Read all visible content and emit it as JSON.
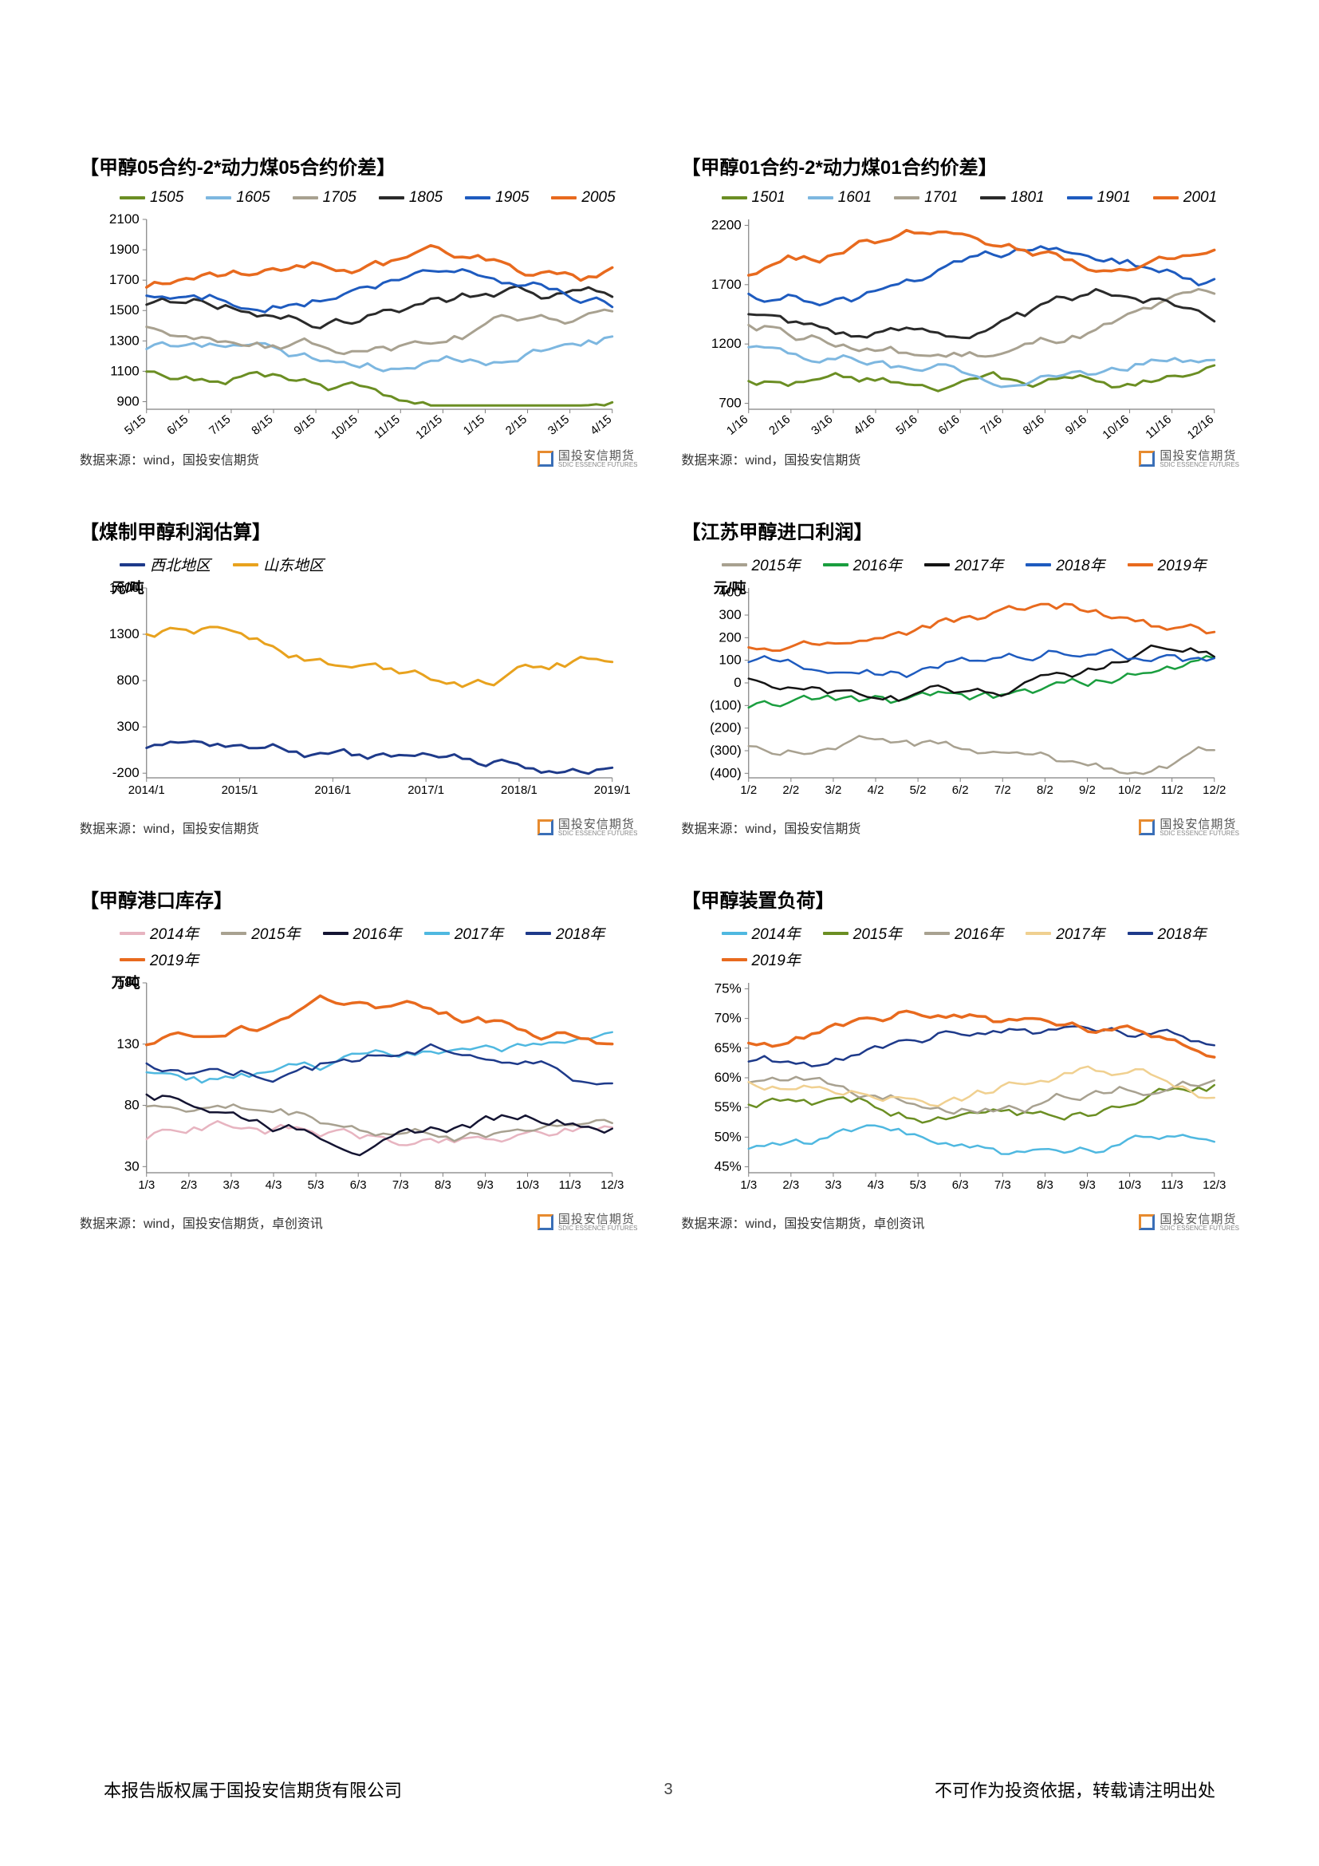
{
  "grid_color": "#bfbfbf",
  "axis_color": "#808080",
  "background_color": "#ffffff",
  "charts": [
    {
      "id": "c1",
      "title": "【甲醇05合约-2*动力煤05合约价差】",
      "type": "line",
      "axis_label": "",
      "series": [
        {
          "name": "1505",
          "color": "#6b8e23",
          "width": 3
        },
        {
          "name": "1605",
          "color": "#7db7e0",
          "width": 3
        },
        {
          "name": "1705",
          "color": "#a8a190",
          "width": 3
        },
        {
          "name": "1805",
          "color": "#2a2a2a",
          "width": 3
        },
        {
          "name": "1905",
          "color": "#1e5bbf",
          "width": 3
        },
        {
          "name": "2005",
          "color": "#e86a1e",
          "width": 3.5
        }
      ],
      "x_ticks": [
        "5/15",
        "6/15",
        "7/15",
        "8/15",
        "9/15",
        "10/15",
        "11/15",
        "12/15",
        "1/15",
        "2/15",
        "3/15",
        "4/15"
      ],
      "y_ticks": [
        900,
        1100,
        1300,
        1500,
        1700,
        1900,
        2100
      ],
      "ylim": [
        850,
        2100
      ],
      "source": "数据来源：wind，国投安信期货"
    },
    {
      "id": "c2",
      "title": "【甲醇01合约-2*动力煤01合约价差】",
      "type": "line",
      "axis_label": "",
      "series": [
        {
          "name": "1501",
          "color": "#6b8e23",
          "width": 3
        },
        {
          "name": "1601",
          "color": "#7db7e0",
          "width": 3
        },
        {
          "name": "1701",
          "color": "#a8a190",
          "width": 3
        },
        {
          "name": "1801",
          "color": "#2a2a2a",
          "width": 3
        },
        {
          "name": "1901",
          "color": "#1e5bbf",
          "width": 3
        },
        {
          "name": "2001",
          "color": "#e86a1e",
          "width": 3.5
        }
      ],
      "x_ticks": [
        "1/16",
        "2/16",
        "3/16",
        "4/16",
        "5/16",
        "6/16",
        "7/16",
        "8/16",
        "9/16",
        "10/16",
        "11/16",
        "12/16"
      ],
      "y_ticks": [
        700,
        1200,
        1700,
        2200
      ],
      "ylim": [
        650,
        2250
      ],
      "source": "数据来源：wind，国投安信期货"
    },
    {
      "id": "c3",
      "title": "【煤制甲醇利润估算】",
      "type": "line",
      "axis_label": "元/吨",
      "series": [
        {
          "name": "西北地区",
          "color": "#1e3a8a",
          "width": 3
        },
        {
          "name": "山东地区",
          "color": "#e8a21e",
          "width": 3
        }
      ],
      "x_ticks": [
        "2014/1",
        "2015/1",
        "2016/1",
        "2017/1",
        "2018/1",
        "2019/1"
      ],
      "y_ticks": [
        -200,
        300,
        800,
        1300,
        1800
      ],
      "ylim": [
        -250,
        1800
      ],
      "source": "数据来源：wind，国投安信期货"
    },
    {
      "id": "c4",
      "title": "【江苏甲醇进口利润】",
      "type": "line",
      "axis_label": "元/吨",
      "series": [
        {
          "name": "2015年",
          "color": "#a8a190",
          "width": 2.5
        },
        {
          "name": "2016年",
          "color": "#1a9e3f",
          "width": 2.5
        },
        {
          "name": "2017年",
          "color": "#141414",
          "width": 2.5
        },
        {
          "name": "2018年",
          "color": "#1e5bbf",
          "width": 2.5
        },
        {
          "name": "2019年",
          "color": "#e86a1e",
          "width": 3
        }
      ],
      "x_ticks": [
        "1/2",
        "2/2",
        "3/2",
        "4/2",
        "5/2",
        "6/2",
        "7/2",
        "8/2",
        "9/2",
        "10/2",
        "11/2",
        "12/2"
      ],
      "y_ticks": [
        -400,
        -300,
        -200,
        -100,
        0,
        100,
        200,
        300,
        400
      ],
      "neg_tick_paren": true,
      "neg_tick_color": "#c81e1e",
      "ylim": [
        -420,
        420
      ],
      "source": "数据来源：wind，国投安信期货"
    },
    {
      "id": "c5",
      "title": "【甲醇港口库存】",
      "type": "line",
      "axis_label": "万吨",
      "series": [
        {
          "name": "2014年",
          "color": "#e7b4c0",
          "width": 2.5
        },
        {
          "name": "2015年",
          "color": "#a8a190",
          "width": 2.5
        },
        {
          "name": "2016年",
          "color": "#141432",
          "width": 2.5
        },
        {
          "name": "2017年",
          "color": "#4fb8e0",
          "width": 2.5
        },
        {
          "name": "2018年",
          "color": "#1e3a8a",
          "width": 2.5
        },
        {
          "name": "2019年",
          "color": "#e86a1e",
          "width": 3.5
        }
      ],
      "x_ticks": [
        "1/3",
        "2/3",
        "3/3",
        "4/3",
        "5/3",
        "6/3",
        "7/3",
        "8/3",
        "9/3",
        "10/3",
        "11/3",
        "12/3"
      ],
      "y_ticks": [
        30,
        80,
        130,
        180
      ],
      "ylim": [
        25,
        180
      ],
      "source": "数据来源：wind，国投安信期货，卓创资讯"
    },
    {
      "id": "c6",
      "title": "【甲醇装置负荷】",
      "type": "line",
      "axis_label": "",
      "pct_ticks": true,
      "series": [
        {
          "name": "2014年",
          "color": "#4fb8e0",
          "width": 2.5
        },
        {
          "name": "2015年",
          "color": "#6b8e23",
          "width": 2.5
        },
        {
          "name": "2016年",
          "color": "#a8a190",
          "width": 2.5
        },
        {
          "name": "2017年",
          "color": "#f0d090",
          "width": 2.5
        },
        {
          "name": "2018年",
          "color": "#1e3a8a",
          "width": 2.5
        },
        {
          "name": "2019年",
          "color": "#e86a1e",
          "width": 3.5
        }
      ],
      "x_ticks": [
        "1/3",
        "2/3",
        "3/3",
        "4/3",
        "5/3",
        "6/3",
        "7/3",
        "8/3",
        "9/3",
        "10/3",
        "11/3",
        "12/3"
      ],
      "y_ticks": [
        45,
        50,
        55,
        60,
        65,
        70,
        75
      ],
      "ylim": [
        44,
        76
      ],
      "source": "数据来源：wind，国投安信期货，卓创资讯"
    }
  ],
  "footer": {
    "left": "本报告版权属于国投安信期货有限公司",
    "page": "3",
    "right": "不可作为投资依据，转载请注明出处"
  },
  "watermark": {
    "brand_cn": "国投安信期货",
    "brand_en": "SDIC ESSENCE FUTURES"
  }
}
